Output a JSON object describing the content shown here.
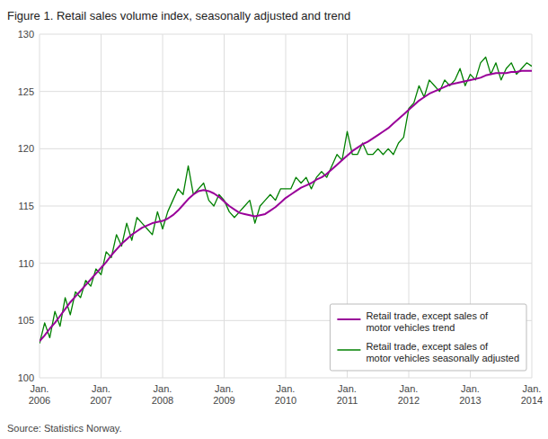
{
  "chart_data": {
    "type": "line",
    "title": "Figure 1. Retail sales volume index, seasonally adjusted and trend",
    "source": "Source: Statistics Norway.",
    "categories": [
      "Jan.\n2006",
      null,
      null,
      null,
      null,
      null,
      null,
      null,
      null,
      null,
      null,
      null,
      "Jan.\n2007",
      null,
      null,
      null,
      null,
      null,
      null,
      null,
      null,
      null,
      null,
      null,
      "Jan.\n2008",
      null,
      null,
      null,
      null,
      null,
      null,
      null,
      null,
      null,
      null,
      null,
      "Jan.\n2009",
      null,
      null,
      null,
      null,
      null,
      null,
      null,
      null,
      null,
      null,
      null,
      "Jan.\n2010",
      null,
      null,
      null,
      null,
      null,
      null,
      null,
      null,
      null,
      null,
      null,
      "Jan.\n2011",
      null,
      null,
      null,
      null,
      null,
      null,
      null,
      null,
      null,
      null,
      null,
      "Jan.\n2012",
      null,
      null,
      null,
      null,
      null,
      null,
      null,
      null,
      null,
      null,
      null,
      "Jan.\n2013",
      null,
      null,
      null,
      null,
      null,
      null,
      null,
      null,
      null,
      null,
      null,
      "Jan.\n2014"
    ],
    "series": [
      {
        "name": "Retail trade, except sales of\nmotor vehicles trend",
        "color": "#990099",
        "values": [
          103.2,
          103.7,
          104.3,
          104.8,
          105.4,
          106.0,
          106.6,
          107.1,
          107.6,
          108.1,
          108.6,
          109.1,
          109.6,
          110.1,
          110.7,
          111.2,
          111.7,
          112.1,
          112.5,
          112.8,
          113.1,
          113.3,
          113.5,
          113.6,
          113.7,
          113.9,
          114.2,
          114.6,
          115.1,
          115.6,
          116.0,
          116.3,
          116.4,
          116.3,
          116.1,
          115.8,
          115.4,
          115.0,
          114.7,
          114.4,
          114.3,
          114.2,
          114.1,
          114.2,
          114.3,
          114.6,
          114.9,
          115.3,
          115.7,
          116.0,
          116.3,
          116.6,
          116.8,
          117.0,
          117.3,
          117.5,
          117.8,
          118.2,
          118.6,
          119.0,
          119.4,
          119.8,
          120.1,
          120.4,
          120.6,
          120.9,
          121.2,
          121.5,
          121.8,
          122.2,
          122.6,
          123.0,
          123.4,
          123.8,
          124.2,
          124.5,
          124.8,
          125.0,
          125.2,
          125.4,
          125.6,
          125.7,
          125.8,
          125.9,
          126.0,
          126.1,
          126.2,
          126.4,
          126.5,
          126.6,
          126.6,
          126.6,
          126.7,
          126.7,
          126.8,
          126.8,
          126.8
        ]
      },
      {
        "name": "Retail trade, except sales of\nmotor vehicles seasonally adjusted",
        "color": "#008000",
        "values": [
          103.0,
          104.8,
          103.5,
          105.8,
          104.5,
          107.0,
          105.5,
          107.5,
          107.0,
          108.5,
          108.0,
          109.5,
          109.0,
          111.0,
          110.5,
          112.5,
          111.5,
          113.5,
          112.0,
          114.0,
          113.5,
          113.0,
          112.5,
          114.5,
          113.0,
          114.5,
          115.5,
          116.5,
          116.0,
          118.5,
          116.0,
          116.5,
          117.0,
          115.5,
          115.0,
          116.0,
          115.5,
          114.5,
          114.0,
          114.5,
          115.0,
          115.5,
          113.5,
          115.0,
          115.5,
          116.0,
          115.5,
          116.5,
          116.5,
          116.5,
          117.5,
          117.0,
          117.5,
          116.5,
          117.5,
          118.0,
          117.5,
          118.5,
          119.5,
          119.0,
          121.5,
          119.5,
          119.5,
          120.5,
          119.5,
          119.5,
          120.0,
          119.5,
          120.0,
          119.5,
          120.5,
          121.0,
          123.5,
          124.0,
          125.5,
          124.5,
          126.0,
          125.5,
          125.0,
          126.0,
          125.5,
          126.0,
          127.0,
          125.5,
          126.5,
          126.0,
          127.5,
          128.0,
          126.5,
          127.5,
          126.0,
          127.0,
          127.5,
          126.5,
          127.0,
          127.5,
          127.2
        ]
      }
    ],
    "ylim": [
      100,
      130
    ],
    "yticks": [
      100,
      105,
      110,
      115,
      120,
      125,
      130
    ],
    "grid": true,
    "legend": "lower right"
  }
}
